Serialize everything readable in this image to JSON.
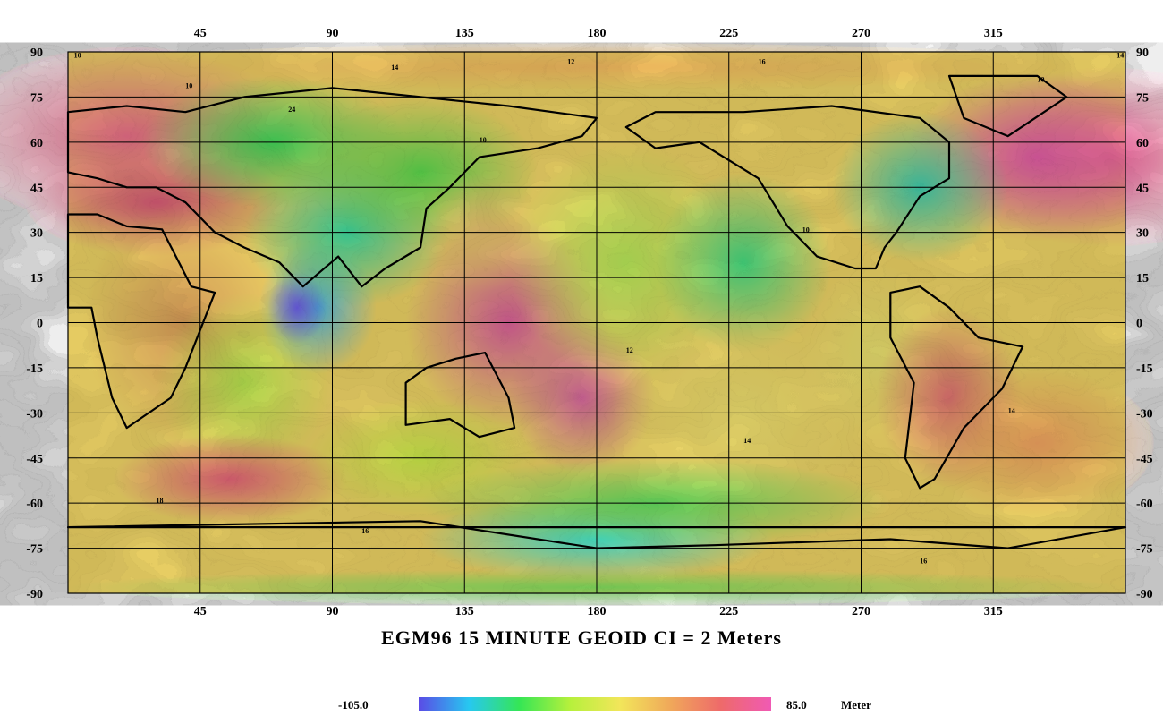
{
  "title": "EGM96 15 MINUTE GEOID CI = 2 Meters",
  "legend": {
    "min_label": "-105.0",
    "max_label": "85.0",
    "unit": "Meter",
    "color_stops": [
      "#5a4be6",
      "#27c8f0",
      "#35e655",
      "#b6f03c",
      "#f2e65a",
      "#f0a85a",
      "#ee6a6a",
      "#f05ab4"
    ]
  },
  "axes": {
    "x_ticks": [
      "45",
      "90",
      "135",
      "180",
      "225",
      "270",
      "315"
    ],
    "y_ticks": [
      "90",
      "75",
      "60",
      "45",
      "30",
      "15",
      "0",
      "-15",
      "-30",
      "-45",
      "-60",
      "-75",
      "-90"
    ]
  },
  "map": {
    "x_range": [
      0,
      360
    ],
    "y_range": [
      -90,
      90
    ],
    "contour_interval": 2,
    "value_range": [
      -105,
      85
    ],
    "contour_labels": [
      "10",
      "14",
      "12",
      "16",
      "10",
      "14",
      "10",
      "24",
      "10",
      "10",
      "12",
      "14",
      "16",
      "14",
      "18",
      "16"
    ]
  }
}
